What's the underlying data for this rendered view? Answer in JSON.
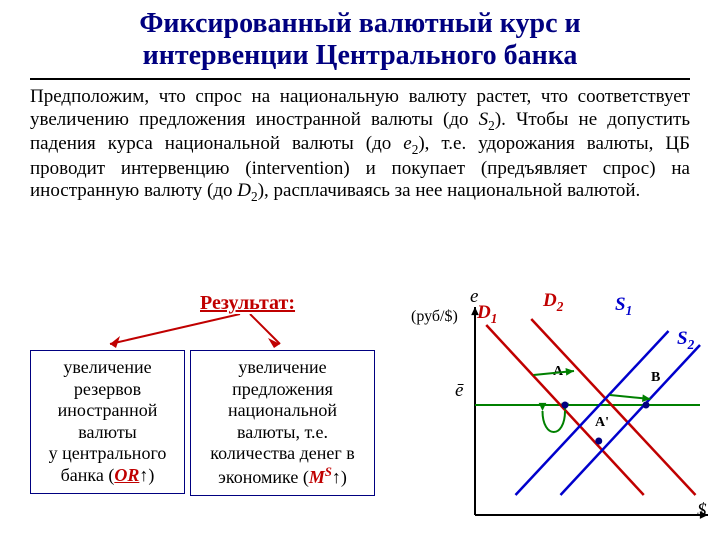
{
  "title_line1": "Фиксированный валютный курс и",
  "title_line2": "интервенции Центрального банка",
  "paragraph_parts": {
    "p1": "Предположим, что спрос на национальную валюту растет, что соответствует увеличению предложения иностранной валюты (до ",
    "s2": "S",
    "s2sub": "2",
    "p2": "). Чтобы не допустить падения курса национальной валюты (до ",
    "e2": "e",
    "e2sub": "2",
    "p3": "), т.е. удорожания валюты, ЦБ проводит интервенцию (intervention) и покупает (предъявляет спрос) на иностранную валюту (до ",
    "d2": "D",
    "d2sub": "2",
    "p4": "), расплачиваясь за нее национальной валютой."
  },
  "result_label": "Результат:",
  "box1": {
    "l1": "увеличение",
    "l2": "резервов",
    "l3": "иностранной",
    "l4": "валюты",
    "l5": "у центрального",
    "l6a": "банка (",
    "or": "OR",
    "arrow": "↑",
    "l6b": ")"
  },
  "box2": {
    "l1": "увеличение",
    "l2": "предложения",
    "l3": "национальной",
    "l4": "валюты, т.е.",
    "l5": "количества денег в",
    "l6a": "экономике (",
    "ms_m": "M",
    "ms_s": "S",
    "arrow": "↑",
    "l6b": ")"
  },
  "chart": {
    "y_axis": "e",
    "y_unit": "(руб/$)",
    "x_axis": "$",
    "e_bar": "ē",
    "D1": "D",
    "D1sub": "1",
    "D2": "D",
    "D2sub": "2",
    "S1": "S",
    "S1sub": "1",
    "S2": "S",
    "S2sub": "2",
    "A": "A",
    "Ap": "A'",
    "B": "B",
    "colors": {
      "axis": "#000000",
      "demand": "#c00000",
      "supply": "#0000cc",
      "ebar_line": "#008000",
      "shift_arrow": "#008000"
    },
    "xlim": [
      0,
      100
    ],
    "ylim": [
      0,
      100
    ],
    "ebar_y": 55,
    "D1_pts": [
      [
        5,
        95
      ],
      [
        75,
        10
      ]
    ],
    "D2_pts": [
      [
        25,
        98
      ],
      [
        98,
        10
      ]
    ],
    "S1_pts": [
      [
        18,
        10
      ],
      [
        86,
        92
      ]
    ],
    "S2_pts": [
      [
        38,
        10
      ],
      [
        100,
        85
      ]
    ],
    "A_xy": [
      40,
      55
    ],
    "Ap_xy": [
      55,
      37
    ],
    "B_xy": [
      76,
      55
    ]
  }
}
